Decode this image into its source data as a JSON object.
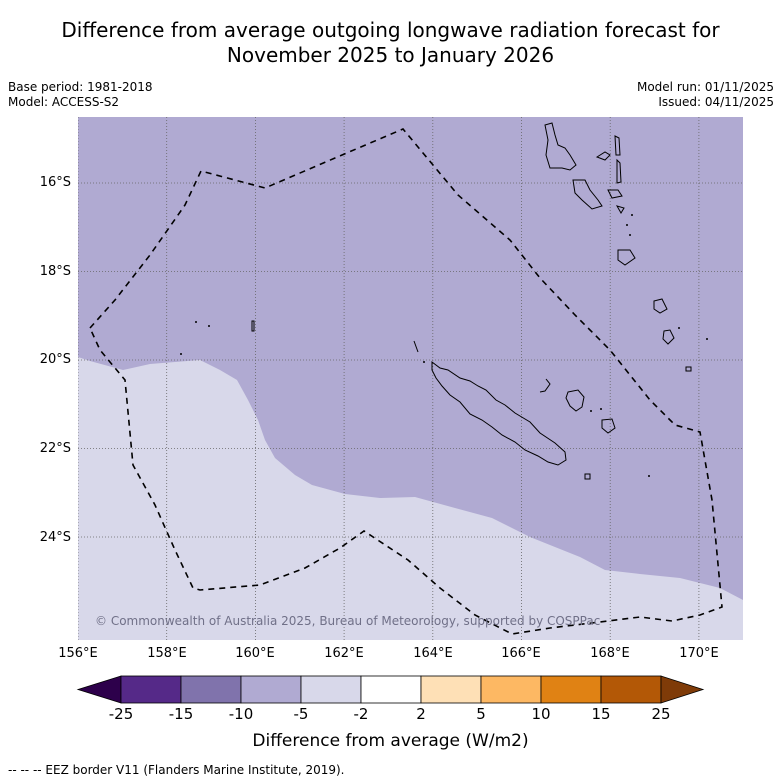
{
  "title": {
    "line1": "Difference from average outgoing longwave radiation forecast for",
    "line2": "November 2025 to January 2026"
  },
  "meta_left": {
    "base_period": "Base period: 1981-2018",
    "model": "Model: ACCESS-S2"
  },
  "meta_right": {
    "model_run": "Model run: 01/11/2025",
    "issued": "Issued: 04/11/2025"
  },
  "map": {
    "lon_range": [
      156,
      171
    ],
    "lat_range": [
      -26.3,
      -14.5
    ],
    "lat_ticks": [
      {
        "value": -16,
        "label": "16°S"
      },
      {
        "value": -18,
        "label": "18°S"
      },
      {
        "value": -20,
        "label": "20°S"
      },
      {
        "value": -22,
        "label": "22°S"
      },
      {
        "value": -24,
        "label": "24°S"
      }
    ],
    "lon_ticks": [
      {
        "value": 156,
        "label": "156°E"
      },
      {
        "value": 158,
        "label": "158°E"
      },
      {
        "value": 160,
        "label": "160°E"
      },
      {
        "value": 162,
        "label": "162°E"
      },
      {
        "value": 164,
        "label": "164°E"
      },
      {
        "value": 166,
        "label": "166°E"
      },
      {
        "value": 168,
        "label": "168°E"
      },
      {
        "value": 170,
        "label": "170°E"
      }
    ],
    "regions": [
      {
        "category": "-10 to -5",
        "color": "#b0aad2",
        "area": "north and east"
      },
      {
        "category": "-5 to -2",
        "color": "#d8d8ea",
        "area": "south-west"
      }
    ],
    "copyright": "© Commonwealth of Australia 2025, Bureau of Meteorology, supported by COSPPac"
  },
  "colorbar": {
    "ticks": [
      "-25",
      "-15",
      "-10",
      "-5",
      "-2",
      "2",
      "5",
      "10",
      "15",
      "25"
    ],
    "colors": [
      "#552988",
      "#8073ac",
      "#b0aad2",
      "#d8d8ea",
      "#ffffff",
      "#fee0b6",
      "#fdb863",
      "#e08214",
      "#b35806"
    ],
    "extend_low_color": "#2d004b",
    "extend_high_color": "#7f3b08",
    "label": "Difference from average (W/m2)"
  },
  "footnote": "--  --  -- EEZ border V11 (Flanders Marine Institute, 2019)."
}
